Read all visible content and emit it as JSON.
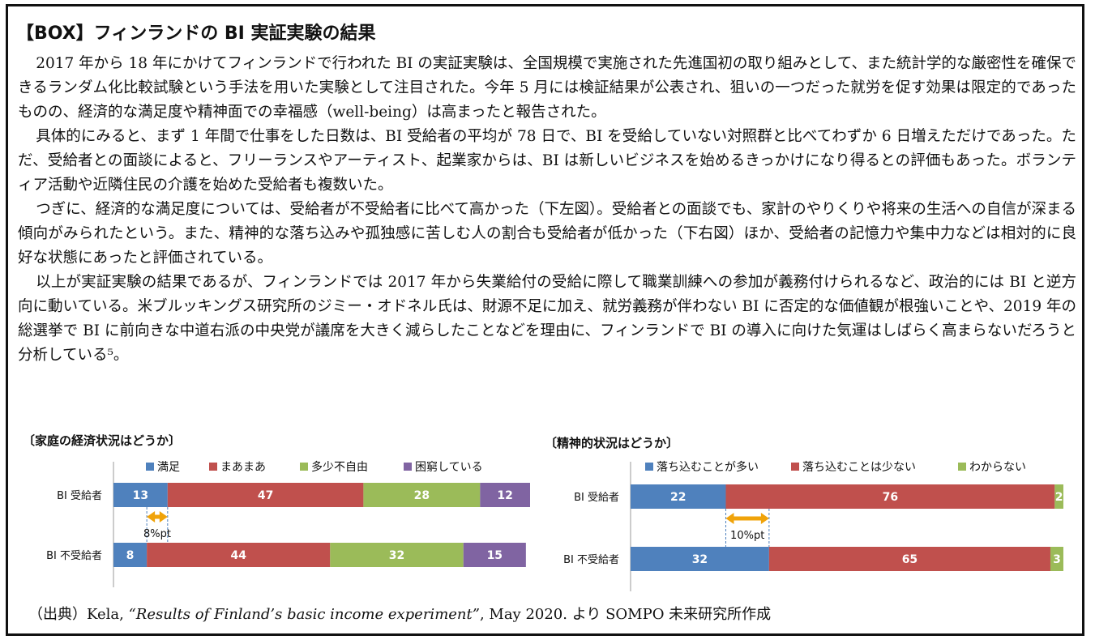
{
  "title": "【BOX】フィンランドの BI 実証実験の結果",
  "paragraphs": [
    "2017 年から 18 年にかけてフィンランドで行われた BI の実証実験は、全国規模で実施された先進国初の取り組みとして、また統計学的な厳密性を確保できるランダム化比較試験という手法を用いた実験として注目された。今年 5 月には検証結果が公表され、狙いの一つだった就労を促す効果は限定的であったものの、経済的な満足度や精神面での幸福感（well-being）は高まったと報告された。",
    "具体的にみると、まず 1 年間で仕事をした日数は、BI 受給者の平均が 78 日で、BI を受給していない対照群と比べてわずか 6 日増えただけであった。ただ、受給者との面談によると、フリーランスやアーティスト、起業家からは、BI は新しいビジネスを始めるきっかけになり得るとの評価もあった。ボランティア活動や近隣住民の介護を始めた受給者も複数いた。",
    "つぎに、経済的な満足度については、受給者が不受給者に比べて高かった（下左図）。受給者との面談でも、家計のやりくりや将来の生活への自信が深まる傾向がみられたという。また、精神的な落ち込みや孤独感に苦しむ人の割合も受給者が低かった（下右図）ほか、受給者の記憶力や集中力などは相対的に良好な状態にあったと評価されている。",
    "以上が実証実験の結果であるが、フィンランドでは 2017 年から失業給付の受給に際して職業訓練への参加が義務付けられるなど、政治的には BI と逆方向に動いている。米ブルッキングス研究所のジミー・オドネル氏は、財源不足に加え、就労義務が伴わない BI に否定的な価値観が根強いことや、2019 年の総選挙で BI に前向きな中道右派の中央党が議席を大きく減らしたことなどを理由に、フィンランドで BI の導入に向けた気運はしばらく高まらないだろうと分析している⁵。"
  ],
  "source": {
    "prefix": "（出典）Kela,",
    "italic": "“Results of Finland’s basic income experiment”",
    "suffix": ", May 2020. より SOMPO 未来研究所作成"
  },
  "chart_data": [
    {
      "type": "bar",
      "orientation": "horizontal-stacked",
      "title": "〔家庭の経済状況はどうか〕",
      "categories": [
        "BI 受給者",
        "BI 不受給者"
      ],
      "series": [
        {
          "name": "満足",
          "color": "#4F81BD",
          "values": [
            13,
            8
          ]
        },
        {
          "name": "まあまあ",
          "color": "#C0504D",
          "values": [
            47,
            44
          ]
        },
        {
          "name": "多少不自由",
          "color": "#9BBB59",
          "values": [
            28,
            32
          ]
        },
        {
          "name": "困窮している",
          "color": "#8064A2",
          "values": [
            12,
            15
          ]
        }
      ],
      "annotation": "8%pt",
      "legend": "top"
    },
    {
      "type": "bar",
      "orientation": "horizontal-stacked",
      "title": "〔精神的状況はどうか〕",
      "categories": [
        "BI 受給者",
        "BI 不受給者"
      ],
      "series": [
        {
          "name": "落ち込むことが多い",
          "color": "#4F81BD",
          "values": [
            22,
            32
          ]
        },
        {
          "name": "落ち込むことは少ない",
          "color": "#C0504D",
          "values": [
            76,
            65
          ]
        },
        {
          "name": "わからない",
          "color": "#9BBB59",
          "values": [
            2,
            3
          ]
        }
      ],
      "annotation": "10%pt",
      "legend": "top"
    }
  ]
}
